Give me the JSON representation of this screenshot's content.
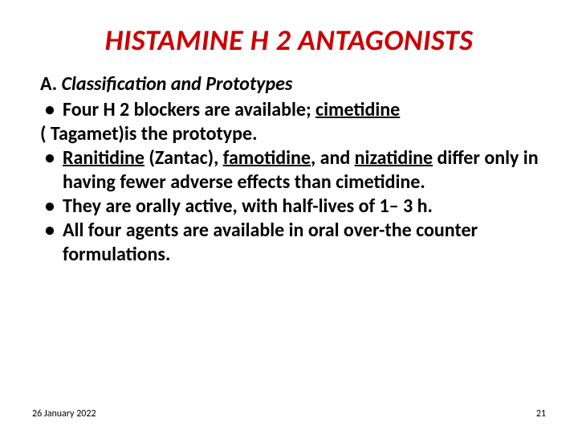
{
  "colors": {
    "title": "#cc0000",
    "body": "#000000",
    "background": "#ffffff"
  },
  "typography": {
    "title_fontsize": 36,
    "body_fontsize": 24,
    "footer_fontsize": 12,
    "title_italic": true,
    "body_bold": true
  },
  "title": "HISTAMINE H 2 ANTAGONISTS",
  "subheading": {
    "letter": "A.",
    "text": "Classification and Prototypes"
  },
  "bullets": [
    {
      "pre": "Four H 2 blockers are available; ",
      "u1": "cimetidine",
      "cont_line": "( Tagamet)is the prototype."
    },
    {
      "u1": "Ranitidine",
      "sep1": " (Zantac), ",
      "u2": "famotidine",
      "sep2": ", and ",
      "u3": "nizatidine",
      "rest": " differ only in having fewer adverse effects than cimetidine."
    },
    {
      "text": "They are orally active, with half-lives of 1– 3 h."
    },
    {
      "text": "All four agents are available in oral over-the counter formulations."
    }
  ],
  "footer": {
    "date": "26 January 2022",
    "page": "21"
  }
}
